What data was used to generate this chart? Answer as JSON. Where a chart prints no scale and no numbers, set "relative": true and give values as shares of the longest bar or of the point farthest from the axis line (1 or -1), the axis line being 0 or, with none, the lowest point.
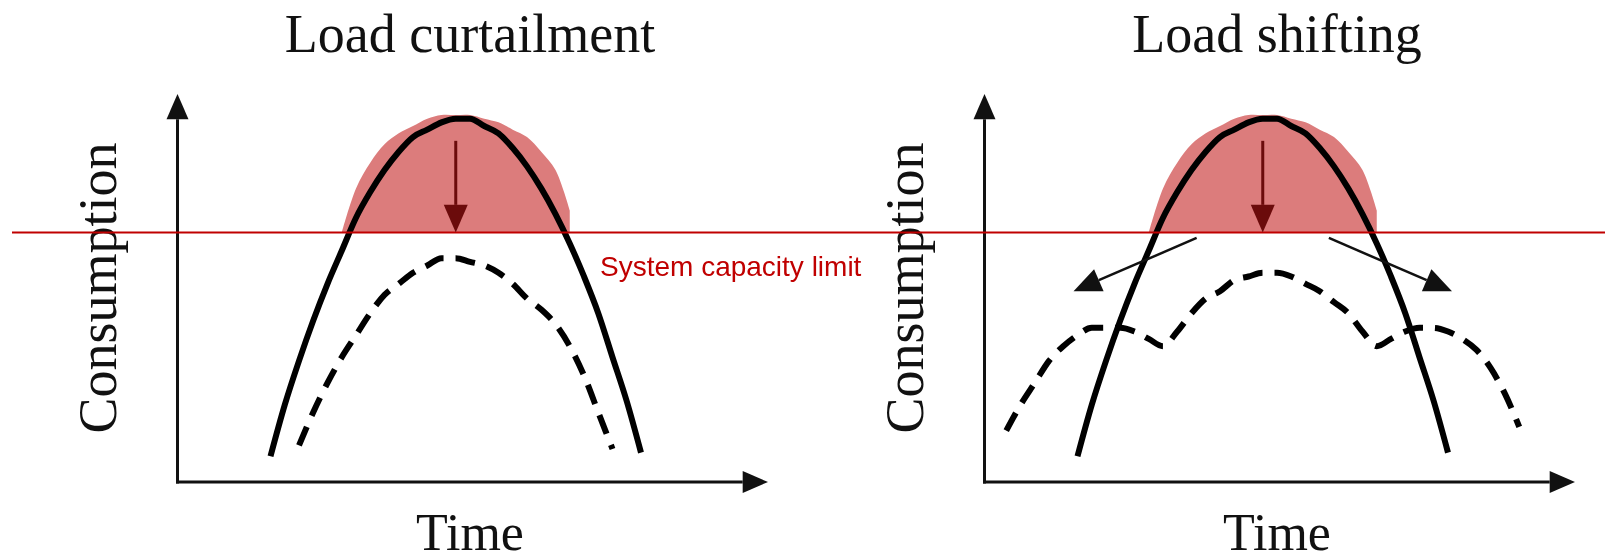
{
  "chart_data": [
    {
      "type": "line",
      "title": "Load curtailment",
      "xlabel": "Time",
      "ylabel": "Consumption",
      "relative": true,
      "categories": [
        null,
        null,
        null,
        null,
        null,
        null,
        null,
        null,
        null,
        null,
        null,
        null,
        null,
        null,
        null,
        null,
        null,
        null,
        null,
        null,
        null,
        null,
        null,
        null,
        null,
        null,
        null,
        null,
        null,
        null,
        null,
        null,
        null,
        null,
        null,
        null,
        null,
        null,
        null,
        null,
        null
      ],
      "series": [
        {
          "type": "area",
          "color": "#dc7c7c",
          "values": [
            null,
            null,
            null,
            null,
            null,
            null,
            null,
            null,
            null,
            null,
            null,
            0.68,
            0.8,
            0.87,
            0.92,
            0.95,
            0.97,
            0.99,
            1.0,
            1.0,
            1.0,
            0.99,
            0.98,
            0.96,
            0.94,
            0.9,
            0.85,
            0.74,
            null,
            null,
            null,
            null,
            null,
            null,
            null,
            null,
            null,
            null,
            null,
            null,
            null
          ]
        },
        {
          "color": "#000000",
          "values": [
            null,
            null,
            null,
            null,
            null,
            null,
            0.07,
            0.21,
            0.33,
            0.44,
            0.54,
            0.63,
            0.72,
            0.79,
            0.85,
            0.9,
            0.94,
            0.96,
            0.98,
            0.99,
            0.99,
            0.97,
            0.95,
            0.91,
            0.86,
            0.8,
            0.73,
            0.65,
            0.56,
            0.46,
            0.34,
            0.22,
            0.08,
            null,
            null,
            null,
            null,
            null,
            null,
            null,
            null
          ]
        },
        {
          "color": "#000000",
          "line_style": "dashed",
          "values": [
            null,
            null,
            null,
            null,
            null,
            null,
            null,
            null,
            0.1,
            0.19,
            0.27,
            0.34,
            0.4,
            0.46,
            0.51,
            0.54,
            0.57,
            0.59,
            0.61,
            0.61,
            0.6,
            0.59,
            0.57,
            0.54,
            0.5,
            0.47,
            0.43,
            0.37,
            0.29,
            0.19,
            0.09,
            null,
            null,
            null,
            null,
            null,
            null,
            null,
            null,
            null,
            null
          ]
        }
      ],
      "ref_lines": [
        {
          "axis": "y",
          "value": 0.68,
          "label": "System capacity limit",
          "color": "#c00000"
        }
      ]
    },
    {
      "type": "line",
      "title": "Load shifting",
      "xlabel": "Time",
      "ylabel": "Consumption",
      "relative": true,
      "categories": [
        null,
        null,
        null,
        null,
        null,
        null,
        null,
        null,
        null,
        null,
        null,
        null,
        null,
        null,
        null,
        null,
        null,
        null,
        null,
        null,
        null,
        null,
        null,
        null,
        null,
        null,
        null,
        null,
        null,
        null,
        null,
        null,
        null,
        null,
        null,
        null,
        null,
        null,
        null,
        null,
        null
      ],
      "series": [
        {
          "type": "area",
          "color": "#dc7c7c",
          "values": [
            null,
            null,
            null,
            null,
            null,
            null,
            null,
            null,
            null,
            null,
            null,
            0.68,
            0.8,
            0.87,
            0.92,
            0.95,
            0.97,
            0.99,
            1.0,
            1.0,
            1.0,
            0.99,
            0.98,
            0.96,
            0.94,
            0.9,
            0.85,
            0.74,
            null,
            null,
            null,
            null,
            null,
            null,
            null,
            null,
            null,
            null,
            null,
            null,
            null
          ]
        },
        {
          "color": "#000000",
          "values": [
            null,
            null,
            null,
            null,
            null,
            null,
            0.07,
            0.21,
            0.33,
            0.44,
            0.54,
            0.63,
            0.72,
            0.79,
            0.85,
            0.9,
            0.94,
            0.96,
            0.98,
            0.99,
            0.99,
            0.97,
            0.95,
            0.91,
            0.86,
            0.8,
            0.73,
            0.65,
            0.56,
            0.46,
            0.34,
            0.22,
            0.08,
            null,
            null,
            null,
            null,
            null,
            null,
            null,
            null
          ]
        },
        {
          "color": "#000000",
          "line_style": "dashed",
          "values": [
            null,
            0.14,
            0.21,
            0.27,
            0.33,
            0.37,
            0.4,
            0.42,
            0.42,
            0.42,
            0.41,
            0.39,
            0.37,
            0.41,
            0.46,
            0.5,
            0.52,
            0.55,
            0.56,
            0.57,
            0.57,
            0.56,
            0.54,
            0.52,
            0.49,
            0.46,
            0.41,
            0.37,
            0.39,
            0.41,
            0.42,
            0.42,
            0.41,
            0.39,
            0.36,
            0.31,
            0.24,
            0.15,
            null,
            null,
            null
          ]
        }
      ],
      "ref_lines": [
        {
          "axis": "y",
          "value": 0.68,
          "color": "#c00000"
        }
      ]
    }
  ]
}
